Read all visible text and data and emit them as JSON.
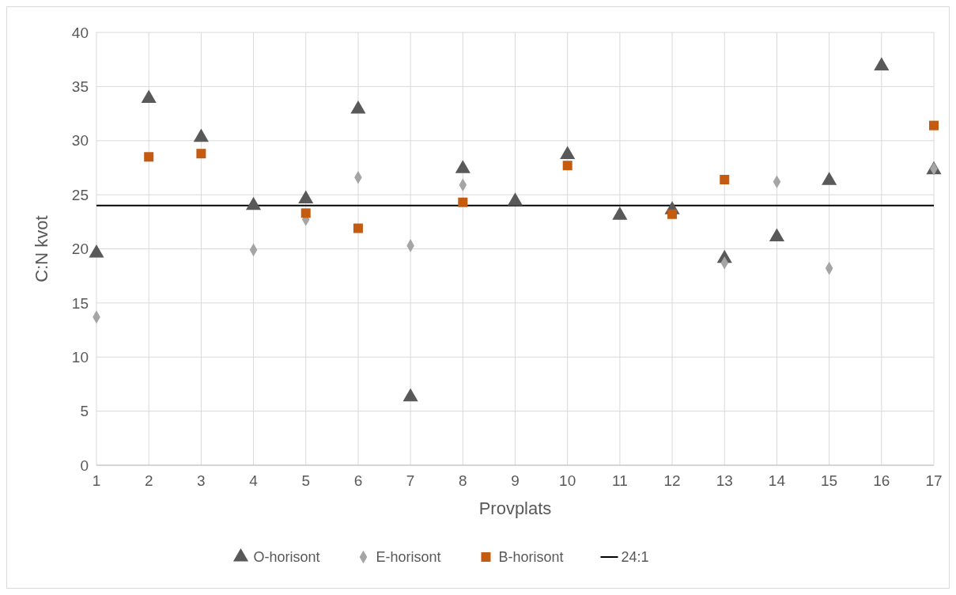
{
  "chart_data": {
    "type": "scatter",
    "xlabel": "Provplats",
    "ylabel": "C:N kvot",
    "x": [
      1,
      2,
      3,
      4,
      5,
      6,
      7,
      8,
      9,
      10,
      11,
      12,
      13,
      14,
      15,
      16,
      17
    ],
    "series": [
      {
        "name": "O-horisont",
        "color": "#595959",
        "marker": "triangle",
        "values": [
          19.6,
          33.9,
          30.3,
          24.0,
          24.6,
          32.9,
          6.3,
          27.4,
          24.4,
          28.7,
          23.1,
          23.6,
          19.1,
          21.1,
          26.3,
          36.9,
          27.3
        ]
      },
      {
        "name": "E-horisont",
        "color": "#a5a5a5",
        "marker": "diamond",
        "values": [
          13.7,
          null,
          null,
          19.9,
          22.7,
          26.6,
          20.3,
          25.9,
          null,
          null,
          null,
          null,
          18.7,
          26.2,
          18.2,
          null,
          27.4
        ]
      },
      {
        "name": "B-horisont",
        "color": "#c55a11",
        "marker": "square",
        "values": [
          null,
          28.5,
          28.8,
          null,
          23.3,
          21.9,
          null,
          24.3,
          null,
          27.7,
          null,
          23.2,
          26.4,
          null,
          null,
          null,
          31.4
        ]
      }
    ],
    "ref_lines": [
      {
        "axis": "y",
        "value": 24,
        "label": "24:1",
        "color": "#000000"
      }
    ],
    "xlim": [
      1,
      17
    ],
    "xticks": [
      1,
      2,
      3,
      4,
      5,
      6,
      7,
      8,
      9,
      10,
      11,
      12,
      13,
      14,
      15,
      16,
      17
    ],
    "ylim": [
      0,
      40
    ],
    "yticks": [
      0,
      5,
      10,
      15,
      20,
      25,
      30,
      35,
      40
    ],
    "grid": true,
    "legend": "bottom"
  }
}
